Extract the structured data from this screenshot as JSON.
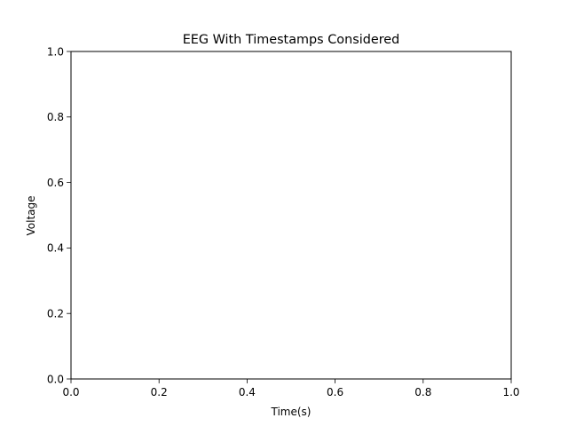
{
  "chart_data": {
    "type": "line",
    "title": "EEG With Timestamps Considered",
    "xlabel": "Time(s)",
    "ylabel": "Voltage",
    "xlim": [
      0.0,
      1.0
    ],
    "ylim": [
      0.0,
      1.0
    ],
    "x_ticks": [
      0.0,
      0.2,
      0.4,
      0.6,
      0.8,
      1.0
    ],
    "x_tick_labels": [
      "0.0",
      "0.2",
      "0.4",
      "0.6",
      "0.8",
      "1.0"
    ],
    "y_ticks": [
      0.0,
      0.2,
      0.4,
      0.6,
      0.8,
      1.0
    ],
    "y_tick_labels": [
      "0.0",
      "0.2",
      "0.4",
      "0.6",
      "0.8",
      "1.0"
    ],
    "grid": false,
    "series": []
  },
  "colors": {
    "background": "#ffffff",
    "axes": "#000000"
  }
}
